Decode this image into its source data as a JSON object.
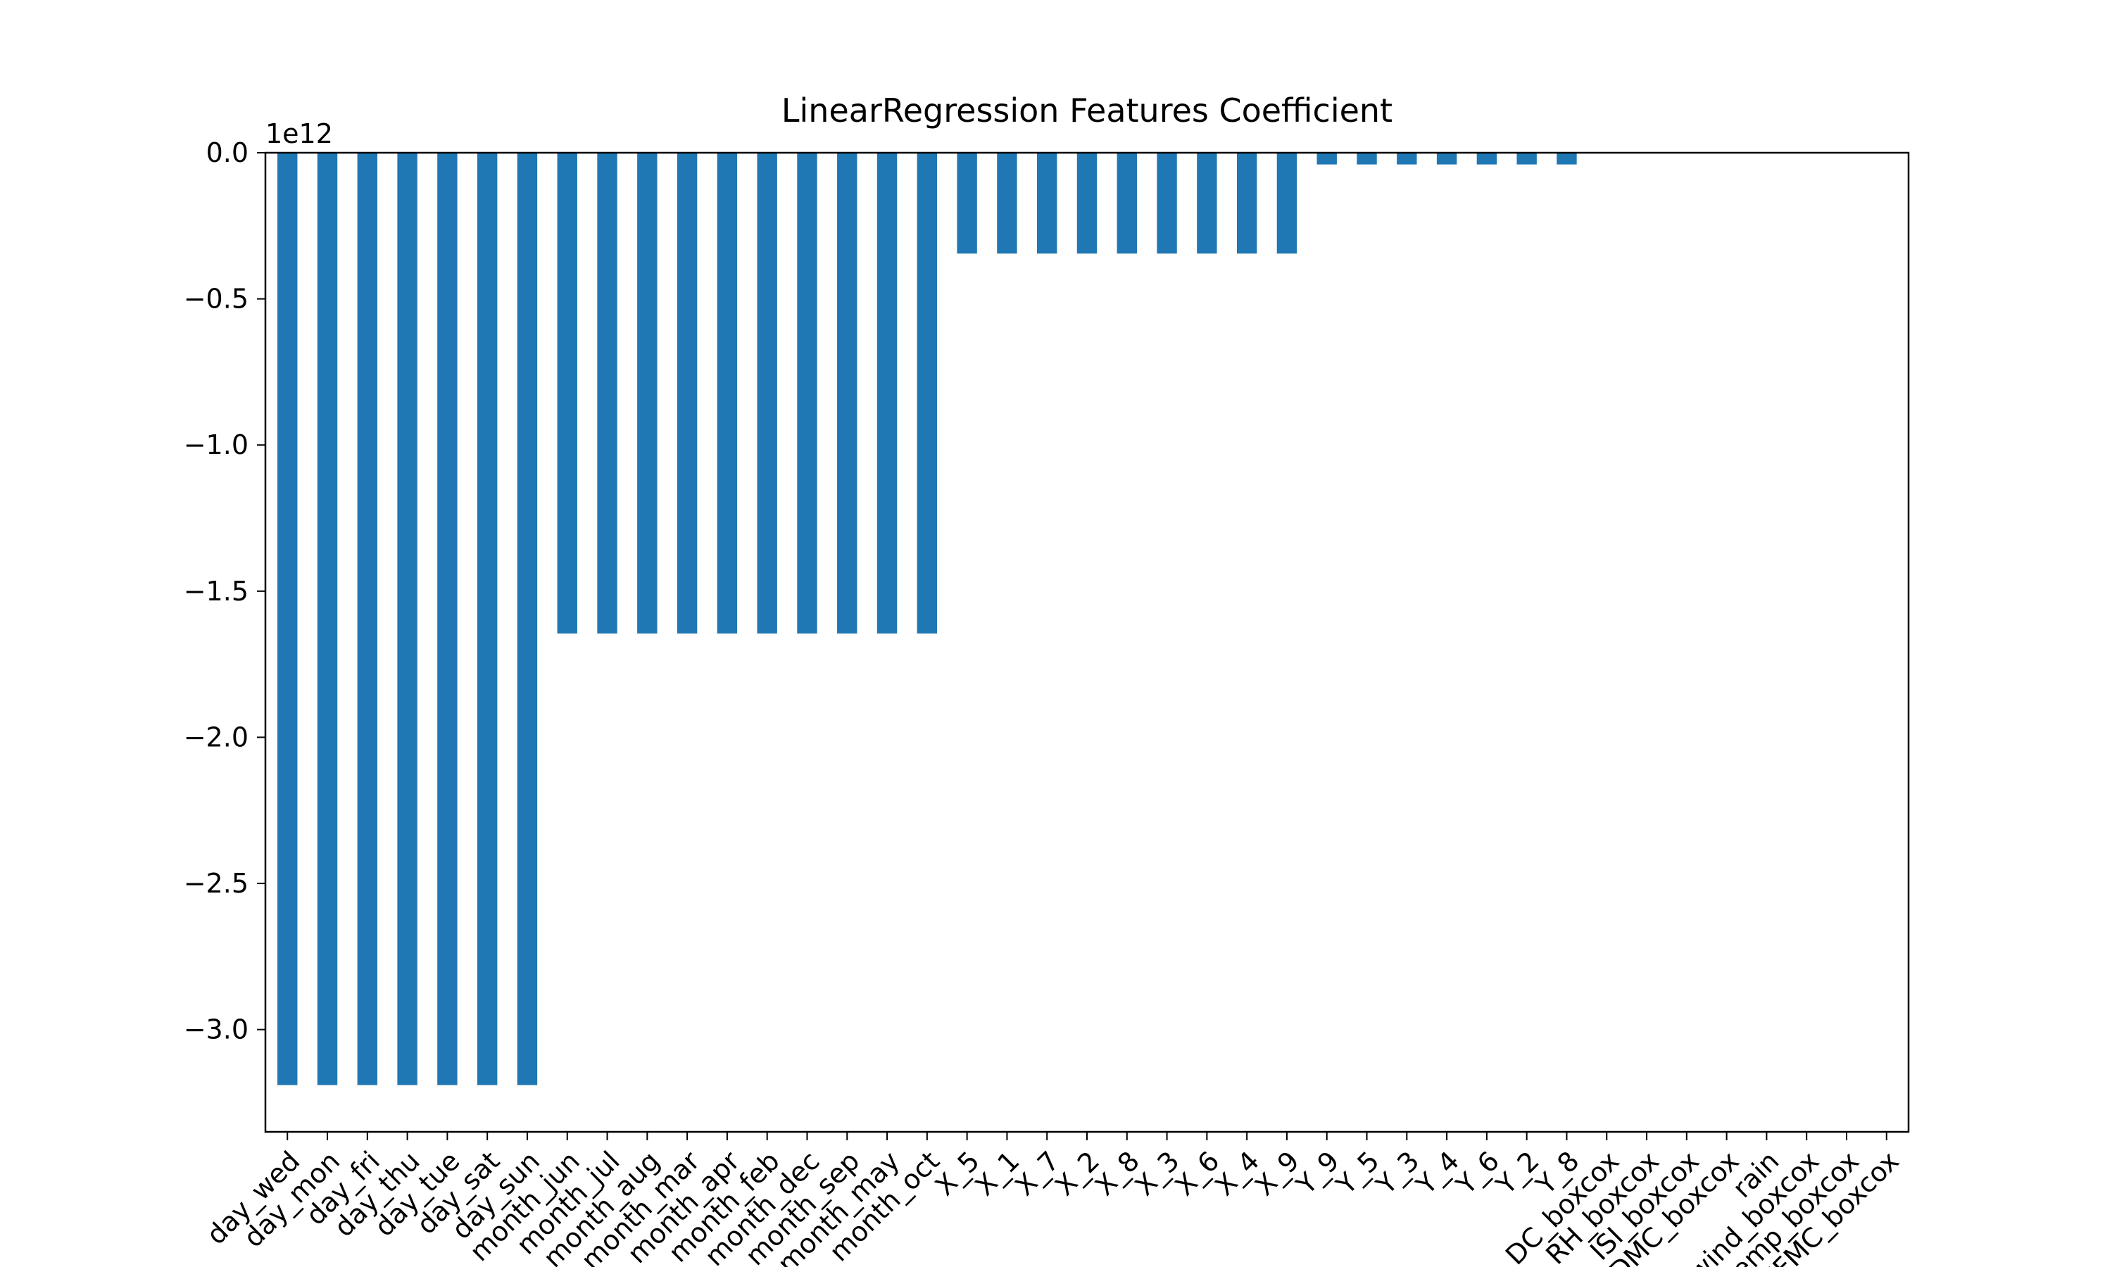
{
  "chart_data": {
    "type": "bar",
    "title": "LinearRegression Features Coefficient",
    "xlabel": "",
    "ylabel": "",
    "y_offset_label": "1e12",
    "ylim": [
      -3.35,
      0.0
    ],
    "yticks": [
      0.0,
      -0.5,
      -1.0,
      -1.5,
      -2.0,
      -2.5,
      -3.0
    ],
    "ytick_labels": [
      "0.0",
      "−0.5",
      "−1.0",
      "−1.5",
      "−2.0",
      "−2.5",
      "−3.0"
    ],
    "grid": false,
    "legend": "none",
    "bar_color": "#1f77b4",
    "categories": [
      "day_wed",
      "day_mon",
      "day_fri",
      "day_thu",
      "day_tue",
      "day_sat",
      "day_sun",
      "month_jun",
      "month_jul",
      "month_aug",
      "month_mar",
      "month_apr",
      "month_feb",
      "month_dec",
      "month_sep",
      "month_may",
      "month_oct",
      "X_5",
      "X_1",
      "X_7",
      "X_2",
      "X_8",
      "X_3",
      "X_6",
      "X_4",
      "X_9",
      "Y_9",
      "Y_5",
      "Y_3",
      "Y_4",
      "Y_6",
      "Y_2",
      "Y_8",
      "DC_boxcox",
      "RH_boxcox",
      "ISI_boxcox",
      "DMC_boxcox",
      "rain",
      "wind_boxcox",
      "temp_boxcox",
      "FFMC_boxcox"
    ],
    "values": [
      -3.19,
      -3.19,
      -3.19,
      -3.19,
      -3.19,
      -3.19,
      -3.19,
      -1.645,
      -1.645,
      -1.645,
      -1.645,
      -1.645,
      -1.645,
      -1.645,
      -1.645,
      -1.645,
      -1.645,
      -0.345,
      -0.345,
      -0.345,
      -0.345,
      -0.345,
      -0.345,
      -0.345,
      -0.345,
      -0.345,
      -0.04,
      -0.04,
      -0.04,
      -0.04,
      -0.04,
      -0.04,
      -0.04,
      0.0,
      0.0,
      0.0,
      0.0,
      0.0,
      0.0,
      0.0,
      0.0
    ]
  }
}
